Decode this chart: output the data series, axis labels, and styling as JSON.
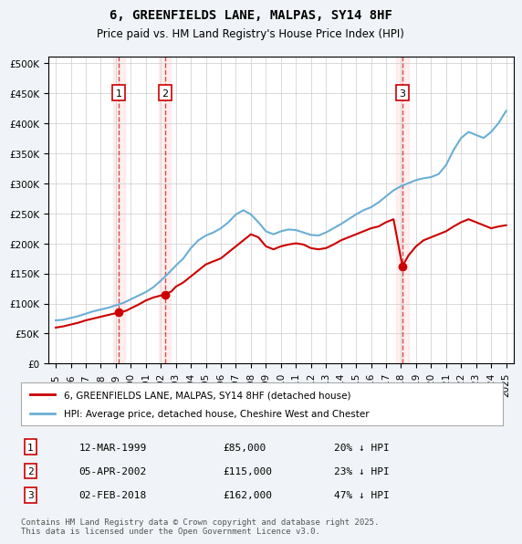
{
  "title": "6, GREENFIELDS LANE, MALPAS, SY14 8HF",
  "subtitle": "Price paid vs. HM Land Registry's House Price Index (HPI)",
  "legend_line1": "6, GREENFIELDS LANE, MALPAS, SY14 8HF (detached house)",
  "legend_line2": "HPI: Average price, detached house, Cheshire West and Chester",
  "footer": "Contains HM Land Registry data © Crown copyright and database right 2025.\nThis data is licensed under the Open Government Licence v3.0.",
  "sales": [
    {
      "label": "1",
      "date": "12-MAR-1999",
      "price": 85000,
      "pct": "20%",
      "dir": "↓",
      "x_year": 1999.2
    },
    {
      "label": "2",
      "date": "05-APR-2002",
      "price": 115000,
      "pct": "23%",
      "dir": "↓",
      "x_year": 2002.27
    },
    {
      "label": "3",
      "date": "02-FEB-2018",
      "price": 162000,
      "pct": "47%",
      "dir": "↓",
      "x_year": 2018.09
    }
  ],
  "hpi_color": "#6baed6",
  "price_color": "#cc0000",
  "shade_color": "#fee0d2",
  "background_color": "#f0f4f8",
  "plot_bg": "#ffffff",
  "ylim": [
    0,
    510000
  ],
  "yticks": [
    0,
    50000,
    100000,
    150000,
    200000,
    250000,
    300000,
    350000,
    400000,
    450000,
    500000
  ],
  "xlim_start": 1994.5,
  "xlim_end": 2025.5,
  "hpi_data": {
    "years": [
      1995,
      1995.5,
      1996,
      1996.5,
      1997,
      1997.5,
      1998,
      1998.5,
      1999,
      1999.5,
      2000,
      2000.5,
      2001,
      2001.5,
      2002,
      2002.5,
      2003,
      2003.5,
      2004,
      2004.5,
      2005,
      2005.5,
      2006,
      2006.5,
      2007,
      2007.5,
      2008,
      2008.5,
      2009,
      2009.5,
      2010,
      2010.5,
      2011,
      2011.5,
      2012,
      2012.5,
      2013,
      2013.5,
      2014,
      2014.5,
      2015,
      2015.5,
      2016,
      2016.5,
      2017,
      2017.5,
      2018,
      2018.5,
      2019,
      2019.5,
      2020,
      2020.5,
      2021,
      2021.5,
      2022,
      2022.5,
      2023,
      2023.5,
      2024,
      2024.5,
      2025
    ],
    "values": [
      72000,
      73000,
      76000,
      79000,
      83000,
      87000,
      90000,
      93000,
      97000,
      101000,
      107000,
      113000,
      119000,
      127000,
      138000,
      150000,
      163000,
      175000,
      192000,
      205000,
      213000,
      218000,
      225000,
      235000,
      248000,
      255000,
      248000,
      235000,
      220000,
      215000,
      220000,
      223000,
      222000,
      218000,
      214000,
      213000,
      218000,
      225000,
      232000,
      240000,
      248000,
      255000,
      260000,
      268000,
      278000,
      288000,
      295000,
      300000,
      305000,
      308000,
      310000,
      315000,
      330000,
      355000,
      375000,
      385000,
      380000,
      375000,
      385000,
      400000,
      420000
    ]
  },
  "price_data": {
    "years": [
      1995,
      1995.5,
      1996,
      1996.5,
      1997,
      1997.5,
      1998,
      1998.5,
      1999.2,
      1999.7,
      2000,
      2000.5,
      2001,
      2001.5,
      2002.27,
      2002.7,
      2003,
      2003.5,
      2004,
      2004.5,
      2005,
      2005.5,
      2006,
      2006.5,
      2007,
      2007.5,
      2008,
      2008.5,
      2009,
      2009.5,
      2010,
      2010.5,
      2011,
      2011.5,
      2012,
      2012.5,
      2013,
      2013.5,
      2014,
      2014.5,
      2015,
      2015.5,
      2016,
      2016.5,
      2017,
      2017.5,
      2018.09,
      2018.5,
      2019,
      2019.5,
      2020,
      2020.5,
      2021,
      2021.5,
      2022,
      2022.5,
      2023,
      2023.5,
      2024,
      2024.5,
      2025
    ],
    "values": [
      60000,
      62000,
      65000,
      68000,
      72000,
      75000,
      78000,
      81000,
      85000,
      88000,
      92000,
      98000,
      105000,
      110000,
      115000,
      120000,
      128000,
      135000,
      145000,
      155000,
      165000,
      170000,
      175000,
      185000,
      195000,
      205000,
      215000,
      210000,
      195000,
      190000,
      195000,
      198000,
      200000,
      198000,
      192000,
      190000,
      192000,
      198000,
      205000,
      210000,
      215000,
      220000,
      225000,
      228000,
      235000,
      240000,
      162000,
      180000,
      195000,
      205000,
      210000,
      215000,
      220000,
      228000,
      235000,
      240000,
      235000,
      230000,
      225000,
      228000,
      230000
    ]
  }
}
